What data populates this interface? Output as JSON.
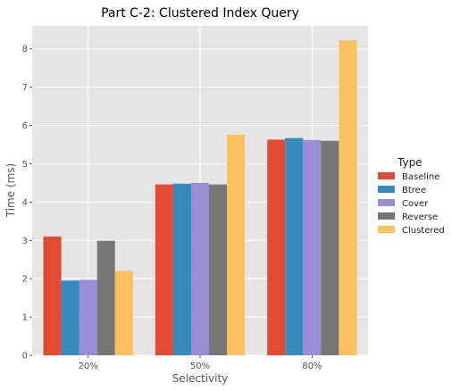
{
  "chart_data": {
    "type": "bar",
    "title": "Part C-2: Clustered Index Query",
    "xlabel": "Selectivity",
    "ylabel": "Time (ms)",
    "categories": [
      "20%",
      "50%",
      "80%"
    ],
    "ylim": [
      0,
      8.6
    ],
    "yticks": [
      "0",
      "1",
      "2",
      "3",
      "4",
      "5",
      "6",
      "7",
      "8"
    ],
    "grid": true,
    "legend": {
      "title": "Type",
      "placement": "right"
    },
    "series": [
      {
        "name": "Baseline",
        "color": "#E24A33",
        "values": [
          3.1,
          4.46,
          5.63
        ]
      },
      {
        "name": "Btree",
        "color": "#348ABD",
        "values": [
          1.95,
          4.48,
          5.67
        ]
      },
      {
        "name": "Cover",
        "color": "#988ED5",
        "values": [
          1.97,
          4.5,
          5.62
        ]
      },
      {
        "name": "Reverse",
        "color": "#777777",
        "values": [
          2.99,
          4.46,
          5.6
        ]
      },
      {
        "name": "Clustered",
        "color": "#FBC15E",
        "values": [
          2.2,
          5.76,
          8.22
        ]
      }
    ]
  }
}
